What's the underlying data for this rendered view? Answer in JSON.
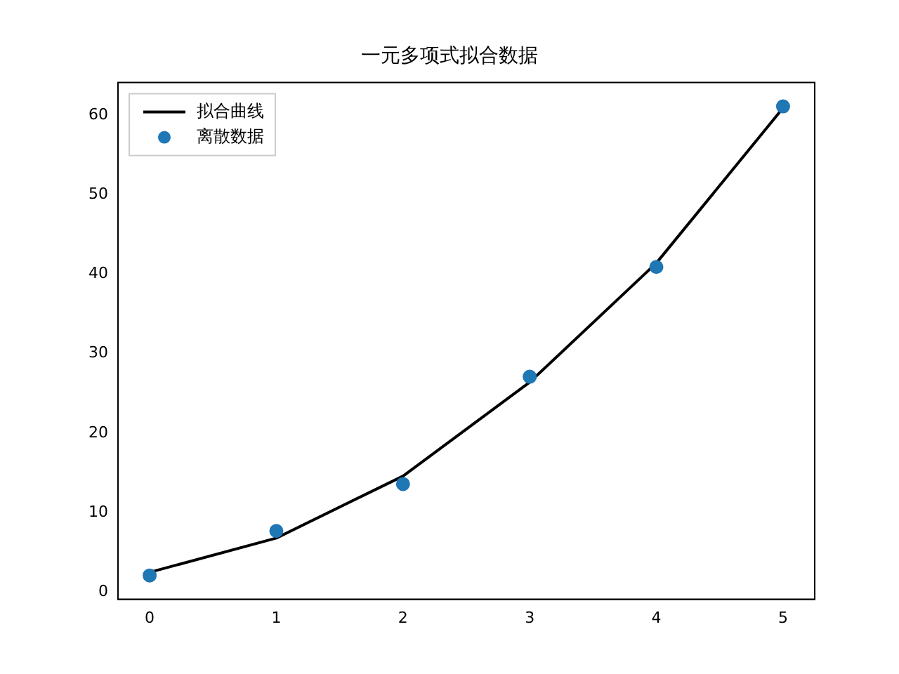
{
  "chart_data": {
    "type": "line",
    "title": "一元多项式拟合数据",
    "x": [
      0,
      1,
      2,
      3,
      4,
      5
    ],
    "xlim": [
      -0.25,
      5.25
    ],
    "xticks": [
      0,
      1,
      2,
      3,
      4,
      5
    ],
    "ylim": [
      -0.9,
      64.1
    ],
    "yticks": [
      0,
      10,
      20,
      30,
      40,
      50,
      60
    ],
    "grid": false,
    "legend": "top left",
    "series": [
      {
        "name": "拟合曲线",
        "color": "#000000",
        "marker": "none",
        "line_style": "solid",
        "values": [
          2.5,
          6.8,
          14.6,
          26.4,
          41.4,
          60.9
        ]
      },
      {
        "name": "离散数据",
        "type": "scatter",
        "color": "#1f77b4",
        "marker": "circle",
        "values": [
          2.1,
          7.7,
          13.6,
          27.1,
          40.9,
          61.1
        ]
      }
    ]
  }
}
